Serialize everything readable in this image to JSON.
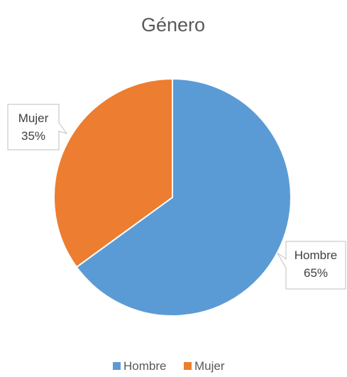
{
  "chart_data": {
    "type": "pie",
    "title": "Género",
    "categories": [
      "Hombre",
      "Mujer"
    ],
    "values": [
      65,
      35
    ],
    "value_labels": [
      "65%",
      "35%"
    ],
    "colors": [
      "#5b9bd5",
      "#ed7d31"
    ],
    "legend_position": "bottom",
    "data_labels": "callouts with category name and percentage"
  }
}
